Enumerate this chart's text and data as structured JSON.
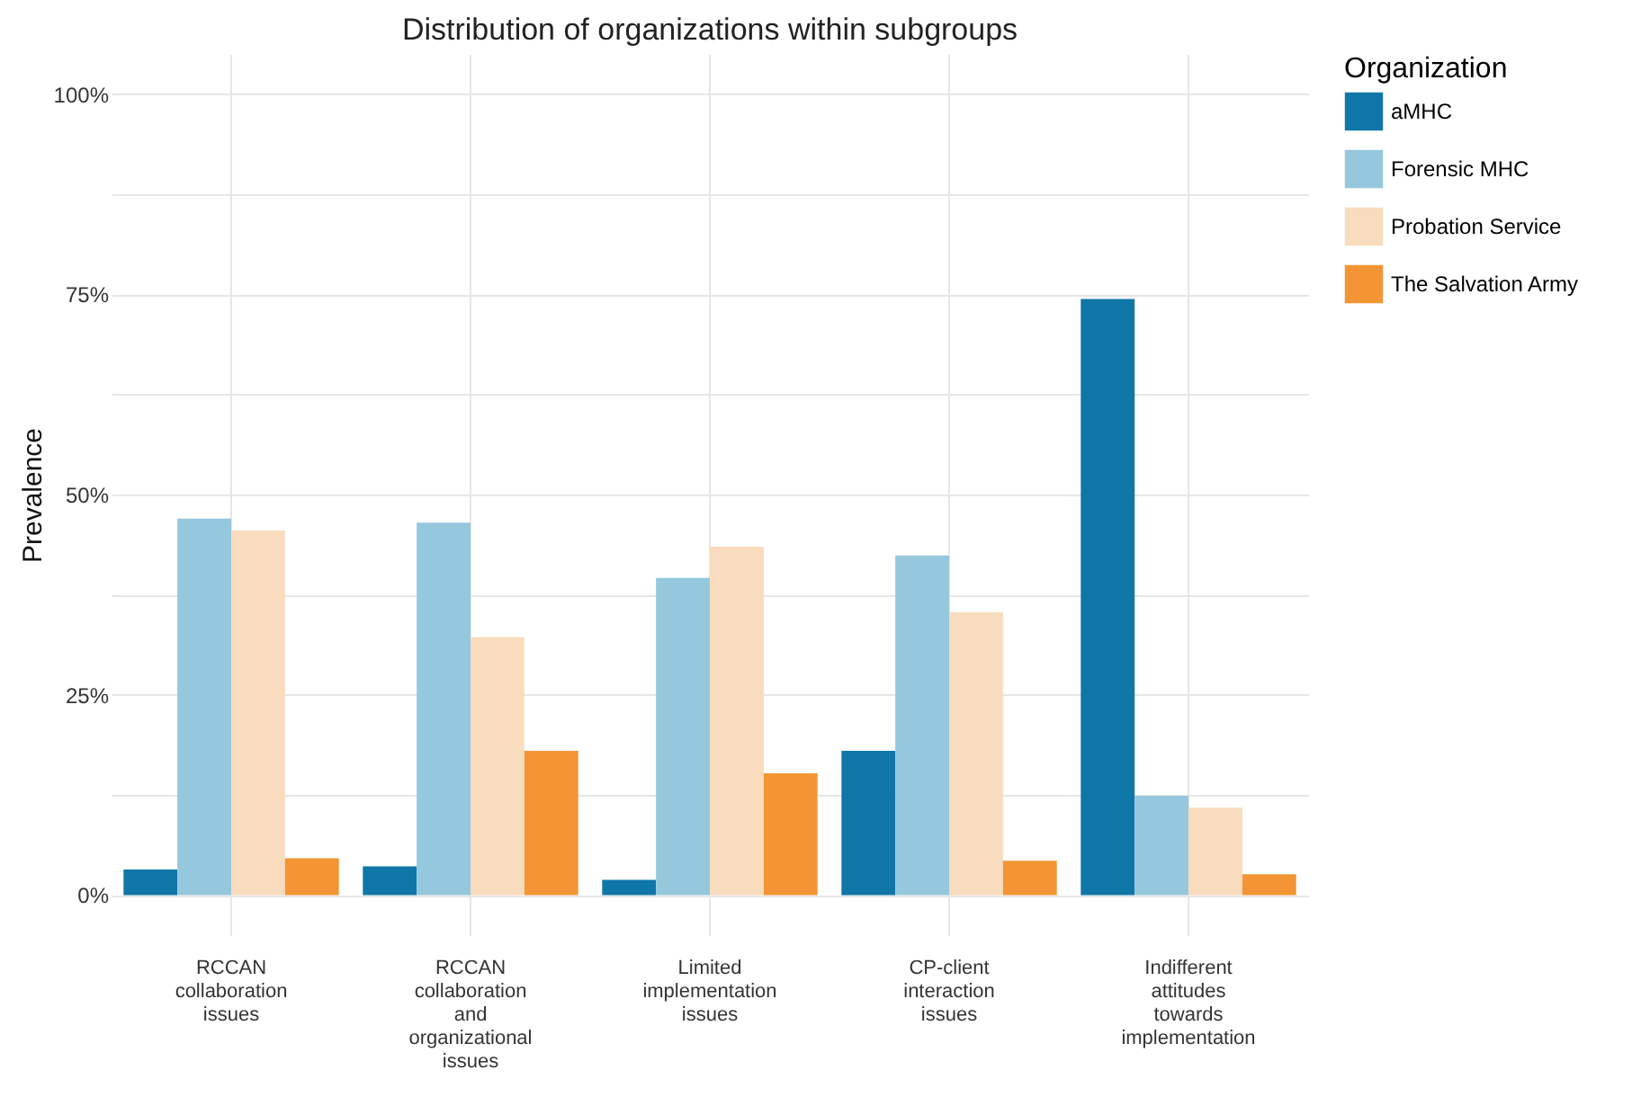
{
  "chart_data": {
    "type": "bar",
    "title": "Distribution of organizations within subgroups",
    "ylabel": "Prevalence",
    "legend_title": "Organization",
    "categories": [
      "RCCAN collaboration issues",
      "RCCAN collaboration and organizational issues",
      "Limited implementation issues",
      "CP-client interaction issues",
      "Indifferent attitudes towards implementation"
    ],
    "series": [
      {
        "name": "aMHC",
        "color": "#0f77a8",
        "values": [
          3.2,
          3.6,
          1.9,
          18.0,
          74.4
        ]
      },
      {
        "name": "Forensic MHC",
        "color": "#95c8dd",
        "values": [
          47.0,
          46.5,
          39.6,
          42.4,
          12.4
        ]
      },
      {
        "name": "Probation Service",
        "color": "#f8dcbd",
        "values": [
          45.5,
          32.2,
          43.5,
          35.3,
          10.9
        ]
      },
      {
        "name": "The Salvation Army",
        "color": "#f39534",
        "values": [
          4.6,
          18.0,
          15.2,
          4.3,
          2.6
        ]
      }
    ],
    "ylim": [
      -5,
      105
    ],
    "yticks": [
      {
        "value": 0,
        "label": "0%"
      },
      {
        "value": 12.5,
        "label": null
      },
      {
        "value": 25,
        "label": "25%"
      },
      {
        "value": 37.5,
        "label": null
      },
      {
        "value": 50,
        "label": "50%"
      },
      {
        "value": 62.5,
        "label": null
      },
      {
        "value": 75,
        "label": "75%"
      },
      {
        "value": 87.5,
        "label": null
      },
      {
        "value": 100,
        "label": "100%"
      }
    ],
    "grid": true,
    "legend": "right"
  }
}
